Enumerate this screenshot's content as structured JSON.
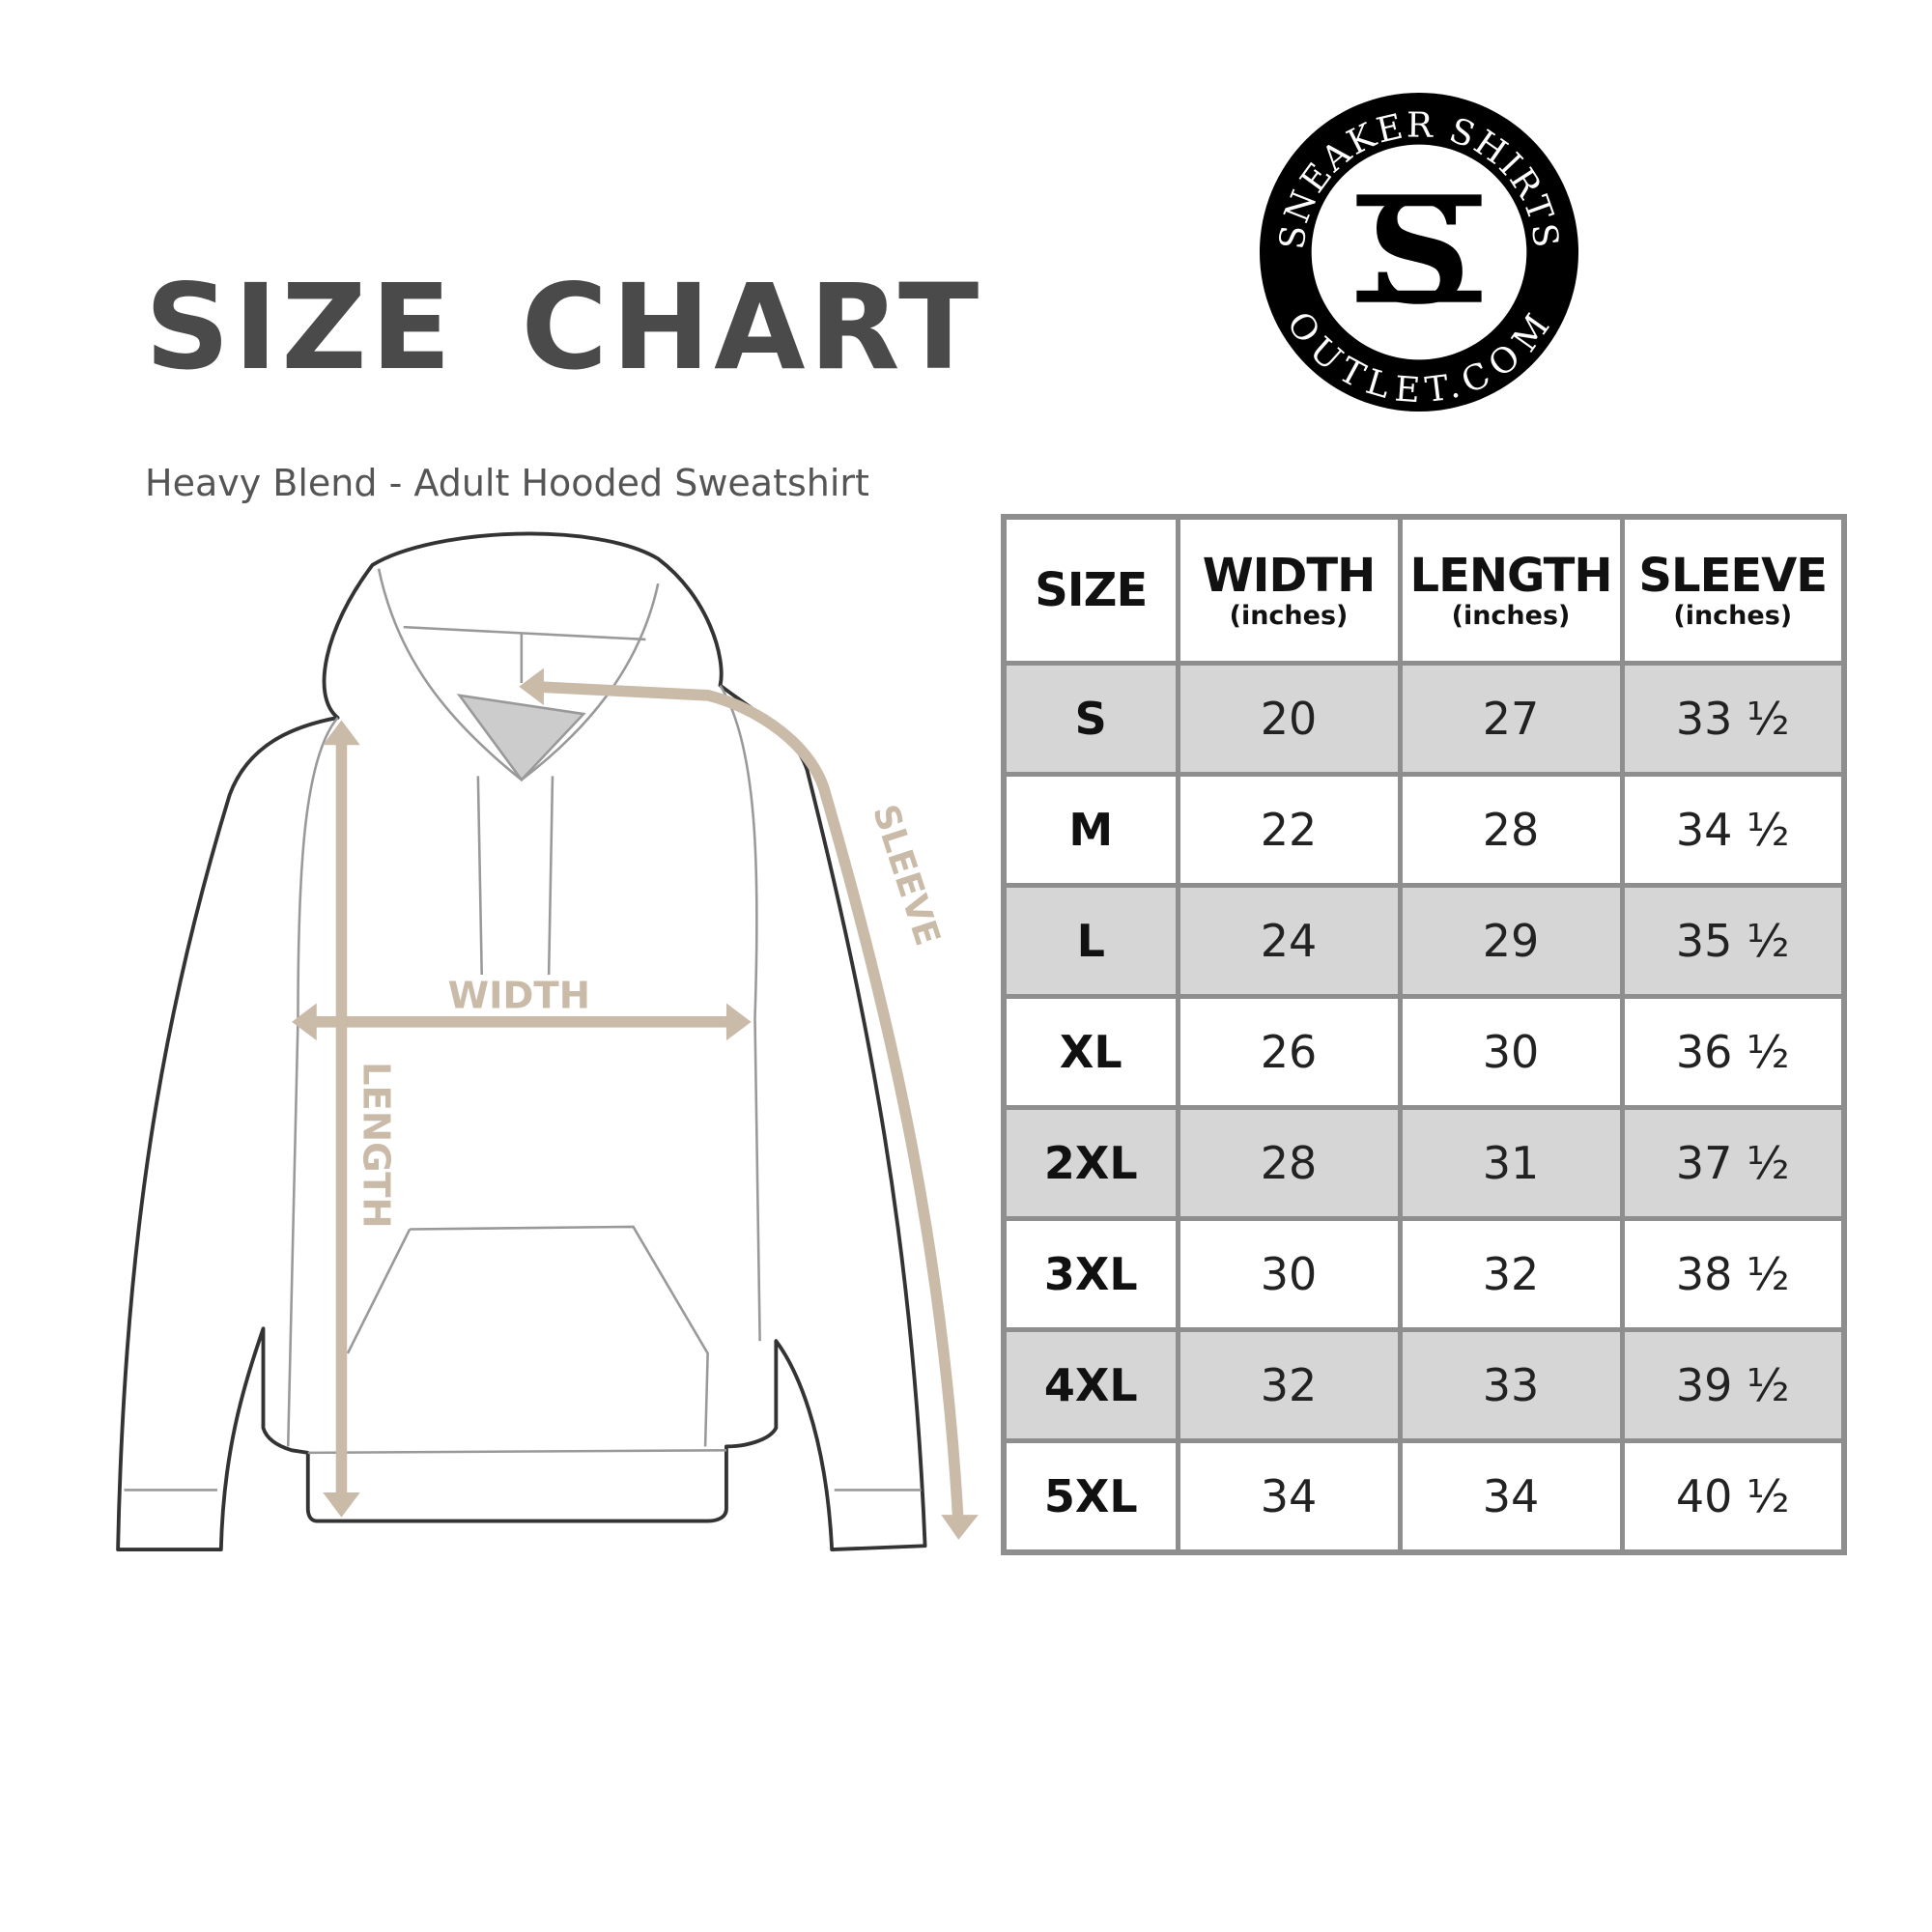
{
  "header": {
    "title": "SIZE CHART",
    "subtitle": "Heavy Blend - Adult Hooded Sweatshirt"
  },
  "logo": {
    "text_top": "SNEAKER SHIRTS",
    "text_bottom": "OUTLET.COM",
    "monogram": "SS"
  },
  "diagram": {
    "width_label": "WIDTH",
    "length_label": "LENGTH",
    "sleeve_label": "SLEEVE",
    "arrow_color": "#c9bba8"
  },
  "table": {
    "columns": [
      {
        "label": "SIZE",
        "unit": ""
      },
      {
        "label": "WIDTH",
        "unit": "(inches)"
      },
      {
        "label": "LENGTH",
        "unit": "(inches)"
      },
      {
        "label": "SLEEVE",
        "unit": "(inches)"
      }
    ],
    "rows": [
      [
        "S",
        "20",
        "27",
        "33 ½"
      ],
      [
        "M",
        "22",
        "28",
        "34 ½"
      ],
      [
        "L",
        "24",
        "29",
        "35 ½"
      ],
      [
        "XL",
        "26",
        "30",
        "36 ½"
      ],
      [
        "2XL",
        "28",
        "31",
        "37 ½"
      ],
      [
        "3XL",
        "30",
        "32",
        "38 ½"
      ],
      [
        "4XL",
        "32",
        "33",
        "39 ½"
      ],
      [
        "5XL",
        "34",
        "34",
        "40 ½"
      ]
    ]
  }
}
